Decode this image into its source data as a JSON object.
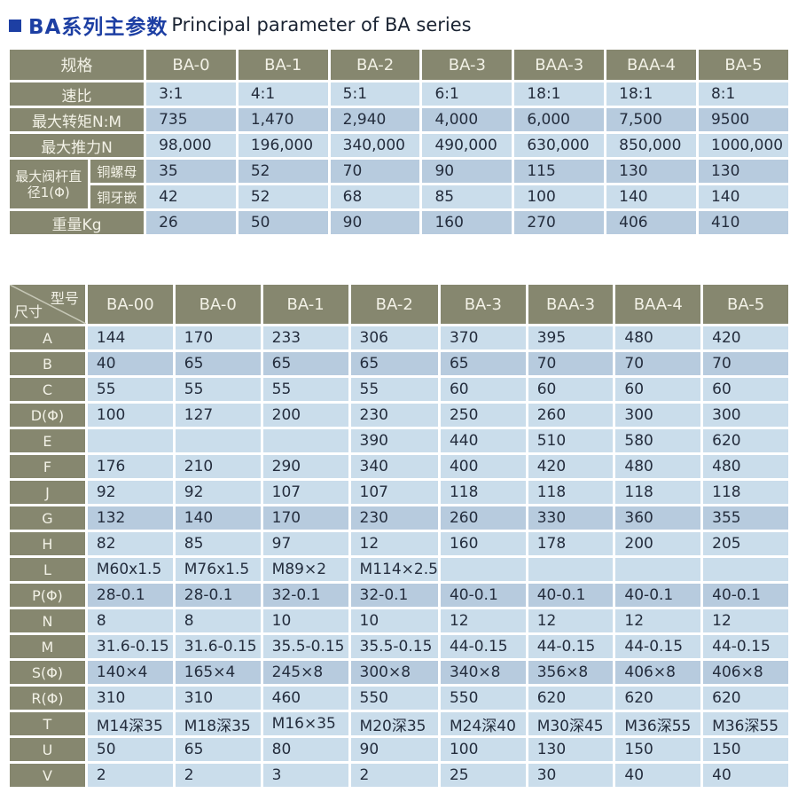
{
  "title": {
    "zh": "BA系列主参数",
    "en": "Principal parameter of BA series"
  },
  "colors": {
    "header_olive": "#86876F",
    "row_light": "#CADDEB",
    "row_dark": "#B7CBDE",
    "title_blue": "#1D3FA3",
    "cell_text": "#242D3D"
  },
  "table1": {
    "corner_label": "规格",
    "columns": [
      "BA-0",
      "BA-1",
      "BA-2",
      "BA-3",
      "BAA-3",
      "BAA-4",
      "BA-5"
    ],
    "rows": [
      {
        "label": "速比",
        "values": [
          "3:1",
          "4:1",
          "5:1",
          "6:1",
          "18:1",
          "18:1",
          "8:1"
        ],
        "shaded": false
      },
      {
        "label": "最大转矩N:M",
        "values": [
          "735",
          "1,470",
          "2,940",
          "4,000",
          "6,000",
          "7,500",
          "9500"
        ],
        "shaded": true
      },
      {
        "label": "最大推力N",
        "values": [
          "98,000",
          "196,000",
          "340,000",
          "490,000",
          "630,000",
          "850,000",
          "1000,000"
        ],
        "shaded": false
      },
      {
        "label": "铜螺母",
        "group": "最大阀杆直径1(Φ)",
        "values": [
          "35",
          "52",
          "70",
          "90",
          "115",
          "130",
          "130"
        ],
        "shaded": true
      },
      {
        "label": "铜牙嵌",
        "group": "",
        "values": [
          "42",
          "52",
          "68",
          "85",
          "100",
          "140",
          "140"
        ],
        "shaded": false
      },
      {
        "label": "重量Kg",
        "values": [
          "26",
          "50",
          "90",
          "160",
          "270",
          "406",
          "410"
        ],
        "shaded": true
      }
    ]
  },
  "table2": {
    "corner": {
      "top_right": "型号",
      "bottom_left": "尺寸"
    },
    "columns": [
      "BA-00",
      "BA-0",
      "BA-1",
      "BA-2",
      "BA-3",
      "BAA-3",
      "BAA-4",
      "BA-5"
    ],
    "rows": [
      {
        "label": "A",
        "values": [
          "144",
          "170",
          "233",
          "306",
          "370",
          "395",
          "480",
          "420"
        ],
        "shaded": false
      },
      {
        "label": "B",
        "values": [
          "40",
          "65",
          "65",
          "65",
          "65",
          "70",
          "70",
          "70"
        ],
        "shaded": true
      },
      {
        "label": "C",
        "values": [
          "55",
          "55",
          "55",
          "55",
          "60",
          "60",
          "60",
          "60"
        ],
        "shaded": false
      },
      {
        "label": "D(Φ)",
        "values": [
          "100",
          "127",
          "200",
          "230",
          "250",
          "260",
          "300",
          "300"
        ],
        "shaded": false
      },
      {
        "label": "E",
        "values": [
          "",
          "",
          "",
          "390",
          "440",
          "510",
          "580",
          "620"
        ],
        "shaded": false
      },
      {
        "label": "F",
        "values": [
          "176",
          "210",
          "290",
          "340",
          "400",
          "420",
          "480",
          "480"
        ],
        "shaded": false
      },
      {
        "label": "J",
        "values": [
          "92",
          "92",
          "107",
          "107",
          "118",
          "118",
          "118",
          "118"
        ],
        "shaded": false
      },
      {
        "label": "G",
        "values": [
          "132",
          "140",
          "170",
          "230",
          "260",
          "330",
          "360",
          "355"
        ],
        "shaded": true
      },
      {
        "label": "H",
        "values": [
          "82",
          "85",
          "97",
          "12",
          "160",
          "178",
          "200",
          "205"
        ],
        "shaded": false
      },
      {
        "label": "L",
        "values": [
          "M60x1.5",
          "M76x1.5",
          "M89×2",
          "M114×2.5",
          "",
          "",
          "",
          ""
        ],
        "shaded": false
      },
      {
        "label": "P(Φ)",
        "values": [
          "28-0.1",
          "28-0.1",
          "32-0.1",
          "32-0.1",
          "40-0.1",
          "40-0.1",
          "40-0.1",
          "40-0.1"
        ],
        "shaded": true
      },
      {
        "label": "N",
        "values": [
          "8",
          "8",
          "10",
          "10",
          "12",
          "12",
          "12",
          "12"
        ],
        "shaded": false
      },
      {
        "label": "M",
        "values": [
          "31.6-0.15",
          "31.6-0.15",
          "35.5-0.15",
          "35.5-0.15",
          "44-0.15",
          "44-0.15",
          "44-0.15",
          "44-0.15"
        ],
        "shaded": false
      },
      {
        "label": "S(Φ)",
        "values": [
          "140×4",
          "165×4",
          "245×8",
          "300×8",
          "340×8",
          "356×8",
          "406×8",
          "406×8"
        ],
        "shaded": true
      },
      {
        "label": "R(Φ)",
        "values": [
          "310",
          "310",
          "460",
          "550",
          "550",
          "620",
          "620",
          "620"
        ],
        "shaded": false
      },
      {
        "label": "T",
        "values": [
          "M14深35",
          "M18深35",
          "M16×35",
          "M20深35",
          "M24深40",
          "M30深45",
          "M36深55",
          "M36深55"
        ],
        "shaded": false
      },
      {
        "label": "U",
        "values": [
          "50",
          "65",
          "80",
          "90",
          "100",
          "130",
          "150",
          "150"
        ],
        "shaded": false
      },
      {
        "label": "V",
        "values": [
          "2",
          "2",
          "3",
          "2",
          "25",
          "30",
          "40",
          "40"
        ],
        "shaded": false
      }
    ]
  }
}
